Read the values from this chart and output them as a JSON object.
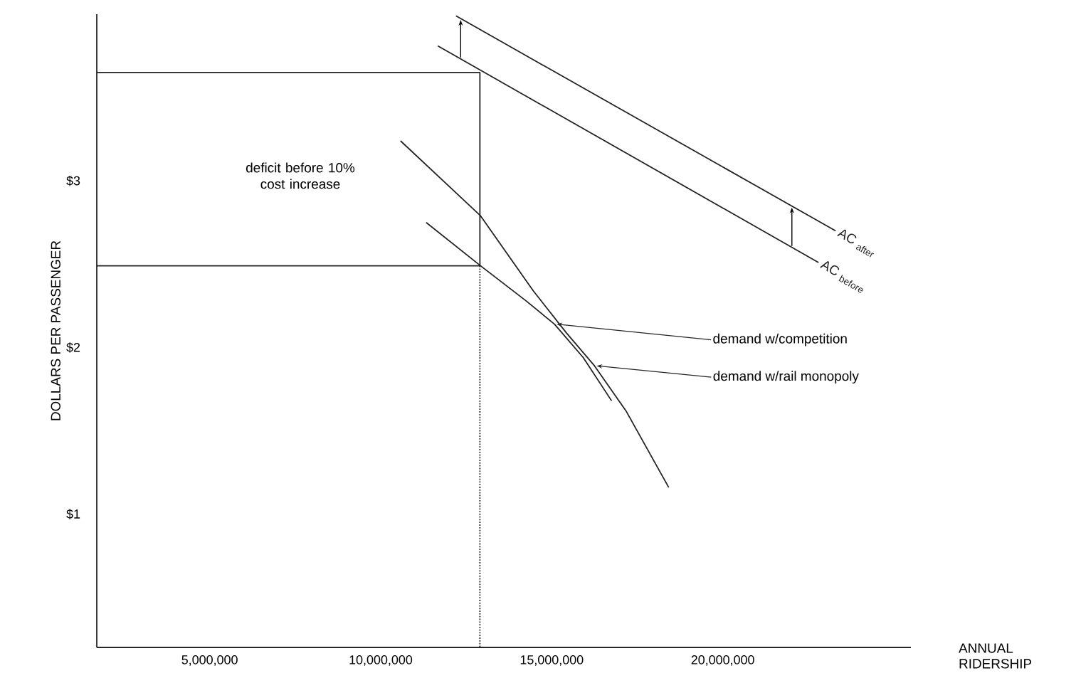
{
  "chart_data": {
    "type": "line",
    "xlabel": "ANNUAL RIDERSHIP",
    "ylabel": "DOLLARS PER PASSENGER",
    "xlim": [
      1700000,
      25500000
    ],
    "ylim": [
      0.2,
      4.0
    ],
    "xticks": [
      {
        "value": 5000000,
        "label": "5,000,000"
      },
      {
        "value": 10000000,
        "label": "10,000,000"
      },
      {
        "value": 15000000,
        "label": "15,000,000"
      },
      {
        "value": 20000000,
        "label": "20,000,000"
      }
    ],
    "yticks": [
      {
        "value": 1,
        "label": "$1"
      },
      {
        "value": 2,
        "label": "$2"
      },
      {
        "value": 3,
        "label": "$3"
      }
    ],
    "annotations": [
      "deficit before 10% cost increase"
    ],
    "series": [
      {
        "name": "AC $_{after}$",
        "color": "#222222",
        "x": [
          12200000,
          23300000
        ],
        "values": [
          3.99,
          2.7
        ]
      },
      {
        "name": "AC $_{before}$",
        "color": "#222222",
        "x": [
          11670000,
          22800000
        ],
        "values": [
          3.81,
          2.51
        ]
      },
      {
        "name": "demand w/rail monopoly",
        "color": "#222222",
        "x": [
          10580000,
          12920000,
          14460000,
          15420000,
          16250000,
          17170000,
          18420000
        ],
        "values": [
          3.24,
          2.79,
          2.34,
          2.09,
          1.89,
          1.62,
          1.16
        ]
      },
      {
        "name": "demand w/competition",
        "color": "#222222",
        "x": [
          11330000,
          12920000,
          14250000,
          15080000,
          15920000,
          16750000
        ],
        "values": [
          2.75,
          2.49,
          2.28,
          2.14,
          1.94,
          1.68
        ]
      },
      {
        "color": "#222222",
        "x": [
          1700000,
          12900000,
          12900000,
          1700000
        ],
        "values": [
          3.65,
          3.65,
          2.49,
          2.49
        ]
      },
      {
        "color": "#222222",
        "line_style": "dotted",
        "x": [
          12900000,
          12900000
        ],
        "values": [
          2.49,
          0.2
        ]
      }
    ]
  }
}
